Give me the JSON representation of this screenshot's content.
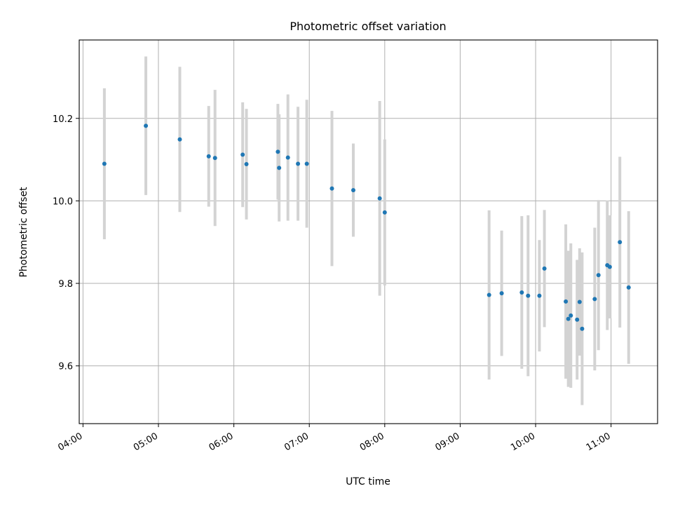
{
  "chart_data": {
    "type": "scatter",
    "title": "Photometric offset variation",
    "xlabel": "UTC time",
    "ylabel": "Photometric offset",
    "x_ticks": [
      "04:00",
      "05:00",
      "06:00",
      "07:00",
      "08:00",
      "09:00",
      "10:00",
      "11:00"
    ],
    "y_ticks": [
      9.6,
      9.8,
      10.0,
      10.2
    ],
    "xlim": [
      "03:57",
      "11:37"
    ],
    "ylim": [
      9.46,
      10.39
    ],
    "grid": true,
    "marker_color": "#1f77b4",
    "errorbar_color": "#d3d3d3",
    "points": [
      {
        "time": "04:17",
        "y": 10.09,
        "err": 0.183
      },
      {
        "time": "04:50",
        "y": 10.182,
        "err": 0.168
      },
      {
        "time": "05:17",
        "y": 10.149,
        "err": 0.176
      },
      {
        "time": "05:40",
        "y": 10.108,
        "err": 0.122
      },
      {
        "time": "05:45",
        "y": 10.104,
        "err": 0.165
      },
      {
        "time": "06:07",
        "y": 10.112,
        "err": 0.127
      },
      {
        "time": "06:10",
        "y": 10.089,
        "err": 0.134
      },
      {
        "time": "06:35",
        "y": 10.119,
        "err": 0.116
      },
      {
        "time": "06:36",
        "y": 10.08,
        "err": 0.13
      },
      {
        "time": "06:43",
        "y": 10.105,
        "err": 0.153
      },
      {
        "time": "06:51",
        "y": 10.09,
        "err": 0.138
      },
      {
        "time": "06:58",
        "y": 10.09,
        "err": 0.155
      },
      {
        "time": "07:18",
        "y": 10.03,
        "err": 0.188
      },
      {
        "time": "07:35",
        "y": 10.026,
        "err": 0.113
      },
      {
        "time": "07:56",
        "y": 10.006,
        "err": 0.236
      },
      {
        "time": "08:00",
        "y": 9.972,
        "err": 0.177
      },
      {
        "time": "09:23",
        "y": 9.772,
        "err": 0.205
      },
      {
        "time": "09:33",
        "y": 9.776,
        "err": 0.152
      },
      {
        "time": "09:49",
        "y": 9.778,
        "err": 0.185
      },
      {
        "time": "09:54",
        "y": 9.77,
        "err": 0.195
      },
      {
        "time": "10:03",
        "y": 9.77,
        "err": 0.135
      },
      {
        "time": "10:07",
        "y": 9.836,
        "err": 0.142
      },
      {
        "time": "10:24",
        "y": 9.756,
        "err": 0.187
      },
      {
        "time": "10:26",
        "y": 9.714,
        "err": 0.165
      },
      {
        "time": "10:28",
        "y": 9.722,
        "err": 0.175
      },
      {
        "time": "10:33",
        "y": 9.712,
        "err": 0.145
      },
      {
        "time": "10:35",
        "y": 9.755,
        "err": 0.13
      },
      {
        "time": "10:37",
        "y": 9.69,
        "err": 0.185
      },
      {
        "time": "10:47",
        "y": 9.762,
        "err": 0.173
      },
      {
        "time": "10:50",
        "y": 9.82,
        "err": 0.182
      },
      {
        "time": "10:57",
        "y": 9.844,
        "err": 0.157
      },
      {
        "time": "10:59",
        "y": 9.84,
        "err": 0.125
      },
      {
        "time": "11:07",
        "y": 9.9,
        "err": 0.207
      },
      {
        "time": "11:14",
        "y": 9.79,
        "err": 0.185
      }
    ]
  }
}
